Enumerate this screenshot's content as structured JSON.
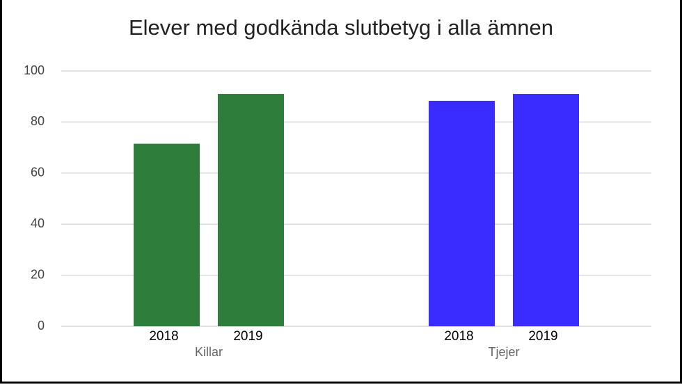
{
  "chart_data": {
    "type": "bar",
    "title": "Elever med godkända slutbetyg i alla ämnen",
    "groups": [
      {
        "name": "Killar",
        "color": "#2e7d3a",
        "categories": [
          "2018",
          "2019"
        ],
        "values": [
          71.5,
          91
        ]
      },
      {
        "name": "Tjejer",
        "color": "#3a2cff",
        "categories": [
          "2018",
          "2019"
        ],
        "values": [
          88.3,
          91
        ]
      }
    ],
    "ylim": [
      0,
      100
    ],
    "yticks": [
      0,
      20,
      40,
      60,
      80,
      100
    ],
    "grid": true
  }
}
